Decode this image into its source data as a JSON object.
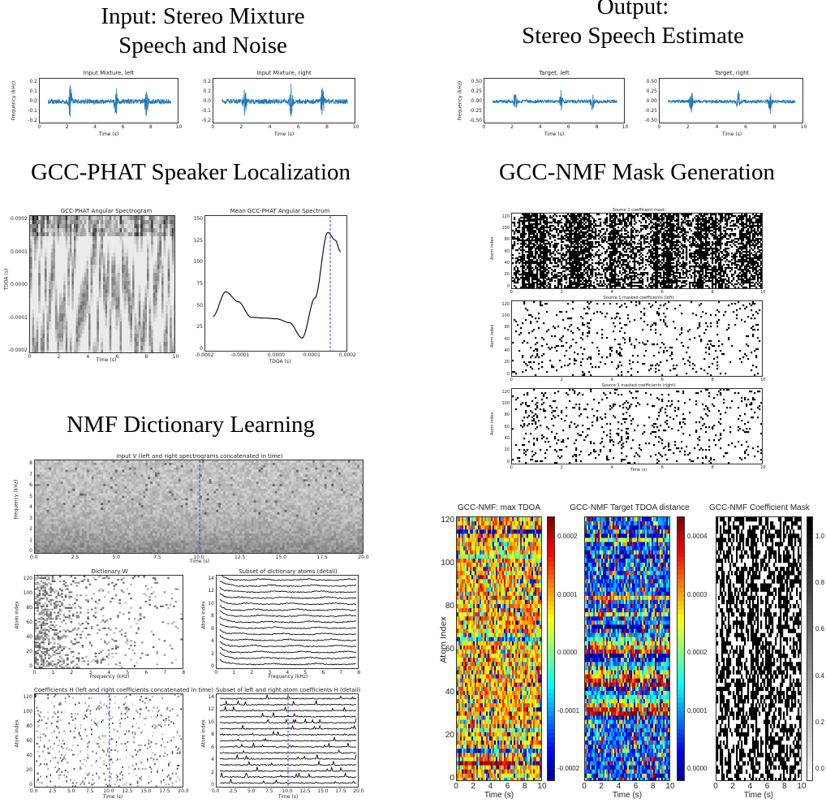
{
  "sections": {
    "input_title_line1": "Input: Stereo Mixture",
    "input_title_line2": "Speech and Noise",
    "output_title_line1": "Output:",
    "output_title_line2": "Stereo Speech Estimate",
    "gcc_phat": "GCC-PHAT Speaker Localization",
    "mask_gen": "GCC-NMF Mask Generation",
    "nmf": "NMF Dictionary Learning"
  },
  "panels": {
    "mix_left": {
      "title": "Input Mixture, left",
      "xlabel": "Time (s)",
      "ylabel": "Frequency (kHz)",
      "yticks": [
        "0.2",
        "0.1",
        "0.0",
        "-0.1",
        "-0.2"
      ],
      "xticks": [
        "0",
        "2",
        "4",
        "6",
        "8",
        "10"
      ]
    },
    "mix_right": {
      "title": "Input Mixture, right",
      "xlabel": "Time (s)",
      "yticks": [
        "0.2",
        "0.1",
        "0.0",
        "-0.1",
        "-0.2"
      ],
      "xticks": [
        "0",
        "2",
        "4",
        "6",
        "8",
        "10"
      ]
    },
    "target_left": {
      "title": "Target, left",
      "xlabel": "Time (s)",
      "ylabel": "Frequency (kHz)",
      "yticks": [
        "0.50",
        "0.25",
        "0.00",
        "-0.25",
        "-0.50"
      ],
      "xticks": [
        "0",
        "2",
        "4",
        "6",
        "8",
        "10"
      ]
    },
    "target_right": {
      "title": "Target, right",
      "xlabel": "Time (s)",
      "yticks": [
        "0.50",
        "0.25",
        "0.00",
        "-0.25",
        "-0.50"
      ],
      "xticks": [
        "0",
        "2",
        "4",
        "6",
        "8",
        "10"
      ]
    },
    "angular_spec": {
      "title": "GCC-PHAT Angular Spectrogram",
      "xlabel": "Time (s)",
      "ylabel": "TDOA (s)",
      "yticks": [
        "0.0002",
        "0.0001",
        "0.0000",
        "-0.0001",
        "-0.0002"
      ],
      "xticks": [
        "0",
        "2",
        "4",
        "6",
        "8",
        "10"
      ]
    },
    "mean_spectrum": {
      "title": "Mean GCC-PHAT Angular Spectrum",
      "xlabel": "TDOA (s)",
      "yticks": [
        "150",
        "125",
        "100",
        "75",
        "50",
        "25",
        "0"
      ],
      "xticks": [
        "-0.0002",
        "-0.0001",
        "0.0000",
        "0.0001",
        "0.0002"
      ]
    },
    "coef_mask": {
      "title": "Source 1 coefficient mask",
      "ylabel": "Atom index",
      "yticks": [
        "120",
        "100",
        "80",
        "60",
        "40",
        "20",
        "0"
      ],
      "xticks": [
        "0",
        "2",
        "4",
        "6",
        "8",
        "10"
      ]
    },
    "masked_left": {
      "title": "Source 1 masked coefficients (left)",
      "ylabel": "Atom index",
      "yticks": [
        "120",
        "100",
        "80",
        "60",
        "40",
        "20",
        "0"
      ],
      "xticks": [
        "0",
        "2",
        "4",
        "6",
        "8",
        "10"
      ]
    },
    "masked_right": {
      "title": "Source 1 masked coefficients (right)",
      "xlabel": "Time (s)",
      "ylabel": "Atom index",
      "yticks": [
        "120",
        "100",
        "80",
        "60",
        "40",
        "20",
        "0"
      ],
      "xticks": [
        "0",
        "2",
        "4",
        "6",
        "8",
        "10"
      ]
    },
    "input_v": {
      "title": "Input V (left and right spectrograms concatenated in time)",
      "xlabel": "Time (s)",
      "ylabel": "Frequency (kHz)",
      "yticks": [
        "8",
        "7",
        "6",
        "5",
        "4",
        "3",
        "2",
        "1",
        "0"
      ],
      "xticks": [
        "0.0",
        "2.5",
        "5.0",
        "7.5",
        "10.0",
        "12.5",
        "15.0",
        "17.5",
        "20.0"
      ]
    },
    "dict_w": {
      "title": "Dictionary W",
      "xlabel": "Frequency (kHz)",
      "ylabel": "Atom index",
      "yticks": [
        "120",
        "100",
        "80",
        "60",
        "40",
        "20",
        "0"
      ],
      "xticks": [
        "0",
        "1",
        "2",
        "3",
        "4",
        "5",
        "6",
        "7",
        "8"
      ]
    },
    "dict_subset": {
      "title": "Subset of dictionary atoms (detail)",
      "xlabel": "Frequency (kHz)",
      "ylabel": "Atom index",
      "yticks": [
        "14",
        "12",
        "10",
        "8",
        "6",
        "4",
        "2",
        "0"
      ],
      "xticks": [
        "0",
        "1",
        "2",
        "3",
        "4",
        "5",
        "6",
        "7",
        "8"
      ]
    },
    "coef_h": {
      "title": "Coefficients H (left and right coefficients concatenated in time)",
      "xlabel": "Time (s)",
      "ylabel": "Atom index",
      "yticks": [
        "120",
        "100",
        "80",
        "60",
        "40",
        "20",
        "0"
      ],
      "xticks": [
        "0.0",
        "2.5",
        "5.0",
        "7.5",
        "10.0",
        "12.5",
        "15.0",
        "17.5",
        "20.0"
      ]
    },
    "coef_subset": {
      "title": "Subset of left and right atom coefficients H (detail)",
      "xlabel": "Time (s)",
      "ylabel": "Atom index",
      "yticks": [
        "14",
        "12",
        "10",
        "8",
        "6",
        "4",
        "2",
        "0"
      ],
      "xticks": [
        "0.0",
        "2.5",
        "5.0",
        "7.5",
        "10.0",
        "12.5",
        "15.0",
        "17.5",
        "20.0"
      ]
    },
    "max_tdoa": {
      "title": "GCC-NMF: max TDOA",
      "xlabel": "Time (s)",
      "ylabel": "Atom Index",
      "yticks": [
        "120",
        "100",
        "80",
        "60",
        "40",
        "20",
        "0"
      ],
      "xticks": [
        "0",
        "2",
        "4",
        "6",
        "8",
        "10"
      ],
      "cbar": [
        "0.0002",
        "0.0001",
        "0.0000",
        "-0.0001",
        "-0.0002"
      ]
    },
    "tdoa_dist": {
      "title": "GCC-NMF Target TDOA distance",
      "xlabel": "Time (s)",
      "xticks": [
        "0",
        "2",
        "4",
        "6",
        "8",
        "10"
      ],
      "cbar": [
        "0.0004",
        "0.0003",
        "0.0002",
        "0.0001",
        "0.0000"
      ]
    },
    "final_mask": {
      "title": "GCC-NMF Coefficient Mask",
      "xlabel": "Time (s)",
      "xticks": [
        "0",
        "2",
        "4",
        "6",
        "8",
        "10"
      ],
      "cbar": [
        "1.0",
        "0.8",
        "0.6",
        "0.4",
        "0.2",
        "0.0"
      ]
    }
  },
  "colors": {
    "waveform": "#1f77b4",
    "dashed_marker": "#1f4fd8"
  }
}
